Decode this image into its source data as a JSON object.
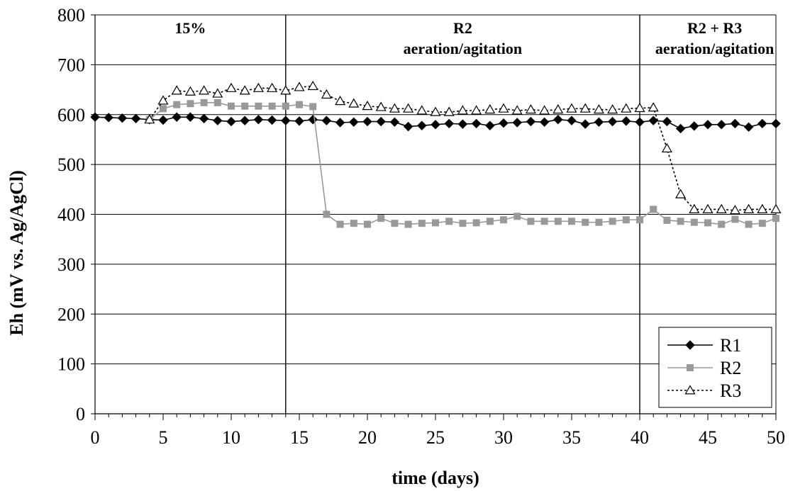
{
  "chart_data": {
    "type": "line",
    "xlabel": "time (days)",
    "ylabel": "Eh (mV vs. Ag/AgCl)",
    "xlim": [
      0,
      50
    ],
    "ylim": [
      0,
      800
    ],
    "xticks": [
      0,
      5,
      10,
      15,
      20,
      25,
      30,
      35,
      40,
      45,
      50
    ],
    "yticks": [
      0,
      100,
      200,
      300,
      400,
      500,
      600,
      700,
      800
    ],
    "grid": "horizontal major gridlines",
    "legend_position": "bottom-right",
    "vertical_lines_x": [
      14,
      40
    ],
    "annotations": [
      {
        "lines": [
          "15%"
        ],
        "x": 7,
        "y": 770
      },
      {
        "lines": [
          "R2",
          "aeration/agitation"
        ],
        "x": 27,
        "y": 770
      },
      {
        "lines": [
          "R2 + R3",
          "aeration/agitation"
        ],
        "x": 45.5,
        "y": 770
      }
    ],
    "series": [
      {
        "name": "R1",
        "color": "#000000",
        "marker": "diamond",
        "dash": "solid",
        "x": [
          0,
          1,
          2,
          3,
          4,
          5,
          6,
          7,
          8,
          9,
          10,
          11,
          12,
          13,
          14,
          15,
          16,
          17,
          18,
          19,
          20,
          21,
          22,
          23,
          24,
          25,
          26,
          27,
          28,
          29,
          30,
          31,
          32,
          33,
          34,
          35,
          36,
          37,
          38,
          39,
          40,
          41,
          42,
          43,
          44,
          45,
          46,
          47,
          48,
          49,
          50
        ],
        "y": [
          595,
          594,
          593,
          592,
          590,
          589,
          595,
          595,
          592,
          588,
          586,
          588,
          590,
          589,
          588,
          587,
          590,
          588,
          584,
          585,
          586,
          586,
          585,
          576,
          578,
          580,
          582,
          581,
          582,
          578,
          583,
          584,
          586,
          585,
          590,
          588,
          581,
          585,
          586,
          587,
          585,
          588,
          586,
          572,
          577,
          580,
          580,
          582,
          575,
          582,
          582
        ]
      },
      {
        "name": "R2",
        "color": "#999999",
        "marker": "square",
        "dash": "solid",
        "x": [
          4,
          5,
          6,
          7,
          8,
          9,
          10,
          11,
          12,
          13,
          14,
          15,
          16,
          17,
          18,
          19,
          20,
          21,
          22,
          23,
          24,
          25,
          26,
          27,
          28,
          29,
          30,
          31,
          32,
          33,
          34,
          35,
          36,
          37,
          38,
          39,
          40,
          41,
          42,
          43,
          44,
          45,
          46,
          47,
          48,
          49,
          50
        ],
        "y": [
          590,
          612,
          620,
          622,
          624,
          624,
          617,
          617,
          617,
          617,
          617,
          620,
          616,
          400,
          380,
          382,
          380,
          392,
          382,
          380,
          382,
          383,
          386,
          382,
          383,
          386,
          389,
          396,
          386,
          386,
          386,
          386,
          384,
          384,
          386,
          389,
          389,
          410,
          388,
          386,
          384,
          383,
          380,
          390,
          380,
          382,
          392
        ]
      },
      {
        "name": "R3",
        "color": "#000000",
        "marker": "triangle-open",
        "dash": "dotted",
        "x": [
          4,
          5,
          6,
          7,
          8,
          9,
          10,
          11,
          12,
          13,
          14,
          15,
          16,
          17,
          18,
          19,
          20,
          21,
          22,
          23,
          24,
          25,
          26,
          27,
          28,
          29,
          30,
          31,
          32,
          33,
          34,
          35,
          36,
          37,
          38,
          39,
          40,
          41,
          42,
          43,
          44,
          45,
          46,
          47,
          48,
          49,
          50
        ],
        "y": [
          590,
          628,
          648,
          646,
          648,
          642,
          653,
          648,
          653,
          653,
          648,
          655,
          657,
          640,
          627,
          622,
          617,
          615,
          612,
          612,
          608,
          605,
          605,
          608,
          608,
          610,
          612,
          608,
          610,
          608,
          610,
          612,
          612,
          610,
          610,
          612,
          613,
          614,
          532,
          440,
          410,
          410,
          410,
          408,
          410,
          410,
          410
        ]
      }
    ]
  }
}
